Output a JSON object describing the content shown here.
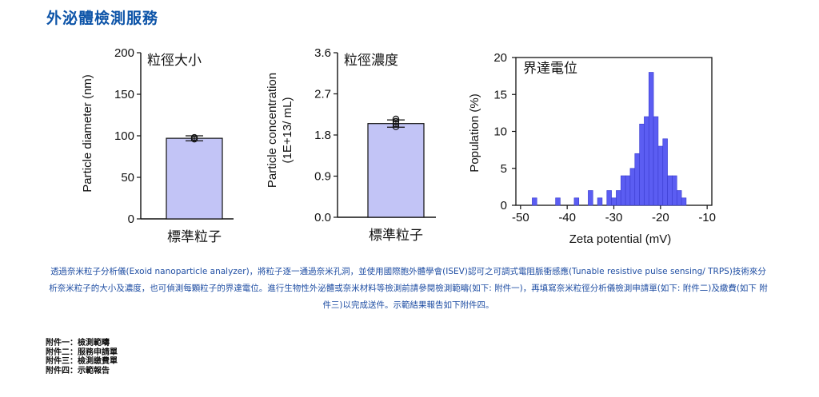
{
  "page_title": "外泌體檢測服務",
  "chart_data": [
    {
      "type": "bar",
      "title": "粒徑大小",
      "categories": [
        "標準粒子"
      ],
      "values": [
        97
      ],
      "error": [
        3
      ],
      "points": [
        96,
        98
      ],
      "xlabel": "標準粒子",
      "ylabel": "Particle diameter (nm)",
      "ylim": [
        0,
        200
      ],
      "yticks": [
        "0",
        "50",
        "100",
        "150",
        "200"
      ],
      "bar_color": "#c2c4f6"
    },
    {
      "type": "bar",
      "title": "粒徑濃度",
      "categories": [
        "標準粒子"
      ],
      "values": [
        2.05
      ],
      "error": [
        0.08
      ],
      "points": [
        1.98,
        2.04,
        2.1,
        2.15
      ],
      "xlabel": "標準粒子",
      "ylabel": "Particle concentration (1E+13/ mL)",
      "ylim": [
        0,
        3.6
      ],
      "yticks": [
        "0.0",
        "0.9",
        "1.8",
        "2.7",
        "3.6"
      ],
      "bar_color": "#c2c4f6"
    },
    {
      "type": "bar",
      "title": "界達電位",
      "x": [
        -47,
        -42,
        -38,
        -35,
        -33,
        -31,
        -30,
        -29,
        -28,
        -27,
        -26,
        -25,
        -24,
        -23,
        -22,
        -21,
        -20,
        -19,
        -18,
        -17,
        -16,
        -15
      ],
      "values": [
        1,
        1,
        1,
        2,
        1,
        2,
        1,
        2,
        4,
        4,
        5,
        7,
        11,
        12,
        18,
        12,
        8,
        9,
        4,
        4,
        2,
        1
      ],
      "xlabel": "Zeta potential (mV)",
      "ylabel": "Population (%)",
      "xlim": [
        -51,
        -9
      ],
      "ylim": [
        0,
        20
      ],
      "xticks": [
        "-50",
        "-40",
        "-30",
        "-20",
        "-10"
      ],
      "yticks": [
        "0",
        "5",
        "10",
        "15",
        "20"
      ],
      "bar_color": "#5b5df2"
    }
  ],
  "description": "透過奈米粒子分析儀(Exoid nanoparticle analyzer)，將粒子逐一通過奈米孔洞，並使用國際胞外體學會(ISEV)認可之可調式電阻脈衝感應(Tunable resistive pulse sensing/ TRPS)技術來分析奈米粒子的大小及濃度，也可偵測每顆粒子的界達電位。進行生物性外泌體或奈米材料等檢測前請參閱檢測範疇(如下: 附件一)，再填寫奈米粒徑分析儀檢測申請單(如下: 附件二)及繳費(如下 附件三)以完成送件。示範結果報告如下附件四。",
  "attachments": [
    "附件一：檢測範疇",
    "附件二：服務申請單",
    "附件三：檢測繳費單",
    "附件四：示範報告"
  ]
}
